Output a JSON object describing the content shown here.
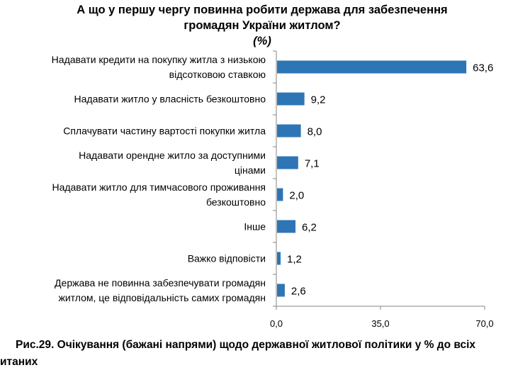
{
  "chart_data": {
    "type": "bar",
    "orientation": "horizontal",
    "title_lines": [
      "А що у першу чергу повинна робити держава для забезпечення",
      "громадян України житлом?",
      "(%)"
    ],
    "categories": [
      [
        "Надавати кредити на покупку житла з низькою",
        "відсотковою ставкою"
      ],
      [
        "Надавати житло у власність безкоштовно"
      ],
      [
        "Сплачувати частину вартості покупки житла"
      ],
      [
        "Надавати орендне житло за доступними",
        "цінами"
      ],
      [
        "Надавати житло для тимчасового проживання",
        "безкоштовно"
      ],
      [
        "Інше"
      ],
      [
        "Важко відповісти"
      ],
      [
        "Держава не повинна забезпечувати громадян",
        "житлом, це відповідальність самих громадян"
      ]
    ],
    "values": [
      63.6,
      9.2,
      8.0,
      7.1,
      2.0,
      6.2,
      1.2,
      2.6
    ],
    "value_labels": [
      "63,6",
      "9,2",
      "8,0",
      "7,1",
      "2,0",
      "6,2",
      "1,2",
      "2,6"
    ],
    "xlim": [
      0,
      70
    ],
    "x_ticks": [
      0,
      35,
      70
    ],
    "x_tick_labels": [
      "0,0",
      "35,0",
      "70,0"
    ],
    "grid": false,
    "legend": "none",
    "bar_color": "#2E75B6"
  },
  "caption": {
    "line1": "Рис.29. Очікування (бажані напрями) щодо державної житлової політики у % до всіх",
    "line2": "итаних"
  }
}
